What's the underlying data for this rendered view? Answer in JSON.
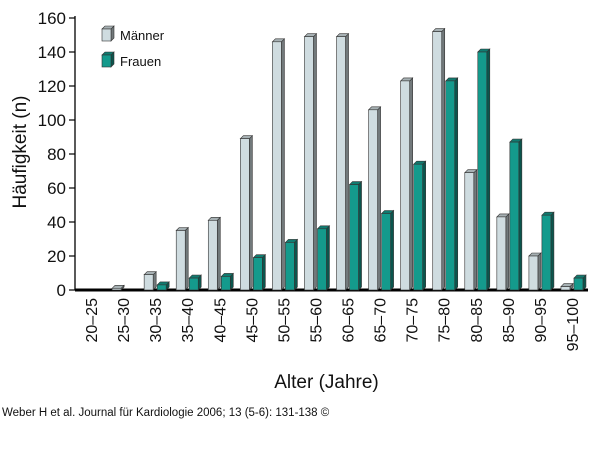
{
  "chart_data": {
    "type": "bar",
    "title": "",
    "xlabel": "Alter (Jahre)",
    "ylabel": "Häufigkeit (n)",
    "ylim": [
      0,
      160
    ],
    "yticks": [
      0,
      20,
      40,
      60,
      80,
      100,
      120,
      140,
      160
    ],
    "grid": false,
    "legend_position": "top-left",
    "categories": [
      "20–25",
      "25–30",
      "30–35",
      "35–40",
      "40–45",
      "45–50",
      "50–55",
      "55–60",
      "60–65",
      "65–70",
      "70–75",
      "75–80",
      "80–85",
      "85–90",
      "90–95",
      "95–100"
    ],
    "series": [
      {
        "name": "Männer",
        "color": "#cfdce0",
        "values": [
          0,
          1,
          9,
          35,
          41,
          89,
          146,
          149,
          149,
          106,
          123,
          152,
          69,
          43,
          20,
          2
        ]
      },
      {
        "name": "Frauen",
        "color": "#149a8c",
        "values": [
          0,
          0,
          3,
          7,
          8,
          19,
          28,
          36,
          62,
          45,
          74,
          123,
          140,
          87,
          44,
          7
        ]
      }
    ]
  },
  "credit": "Weber H et al. Journal für Kardiologie 2006; 13 (5-6): 131-138 ©"
}
